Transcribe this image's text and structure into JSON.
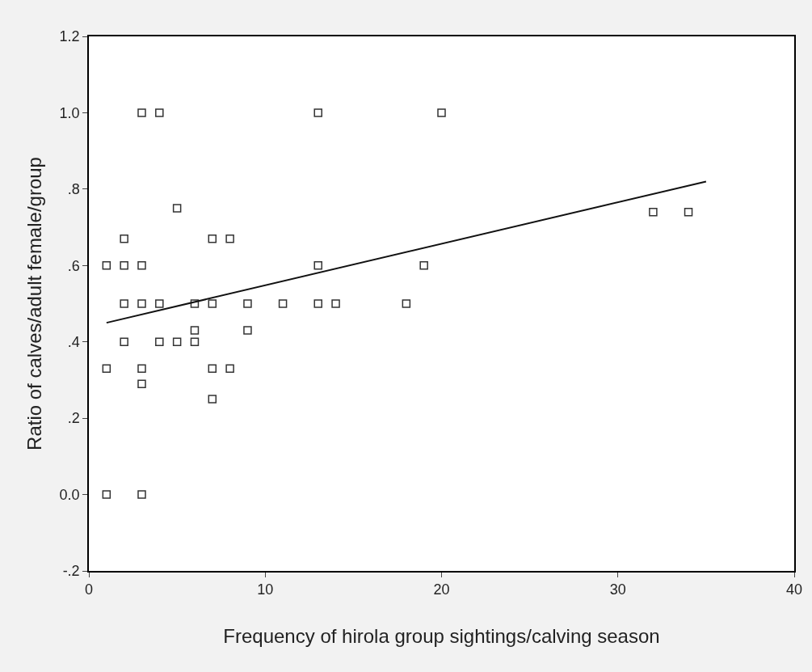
{
  "chart_data": {
    "type": "scatter",
    "xlabel": "Frequency of hirola group sightings/calving season",
    "ylabel": "Ratio of calves/adult female/group",
    "xlim": [
      0,
      40
    ],
    "xticks": [
      0,
      10,
      20,
      30,
      40
    ],
    "ylim": [
      -0.2,
      1.2
    ],
    "yticks": [
      {
        "value": -0.2,
        "label": "-.2"
      },
      {
        "value": 0,
        "label": "0.0"
      },
      {
        "value": 0.2,
        "label": ".2"
      },
      {
        "value": 0.4,
        "label": ".4"
      },
      {
        "value": 0.6,
        "label": ".6"
      },
      {
        "value": 0.8,
        "label": ".8"
      },
      {
        "value": 1.0,
        "label": "1.0"
      },
      {
        "value": 1.2,
        "label": "1.2"
      }
    ],
    "series": [
      {
        "marker": "square",
        "color": "#333333",
        "x": [
          1,
          3,
          1,
          1,
          2,
          2,
          2,
          2,
          3,
          4,
          3,
          3,
          3,
          3,
          4,
          4,
          5,
          5,
          6,
          6,
          6,
          7,
          7,
          7,
          7,
          8,
          8,
          9,
          9,
          11,
          13,
          13,
          13,
          14,
          18,
          19,
          20,
          32,
          34
        ],
        "values": [
          0,
          0,
          0.33,
          0.6,
          0.67,
          0.6,
          0.5,
          0.4,
          1.0,
          1.0,
          0.6,
          0.5,
          0.33,
          0.29,
          0.5,
          0.4,
          0.75,
          0.4,
          0.5,
          0.43,
          0.4,
          0.67,
          0.5,
          0.33,
          0.25,
          0.67,
          0.33,
          0.5,
          0.43,
          0.5,
          1.0,
          0.6,
          0.5,
          0.5,
          0.5,
          0.6,
          1.0,
          0.74,
          0.74
        ]
      },
      {
        "type": "line",
        "color": "#111111",
        "line_style": "solid",
        "marker": "none",
        "x": [
          1,
          35
        ],
        "values": [
          0.45,
          0.82
        ]
      }
    ]
  }
}
